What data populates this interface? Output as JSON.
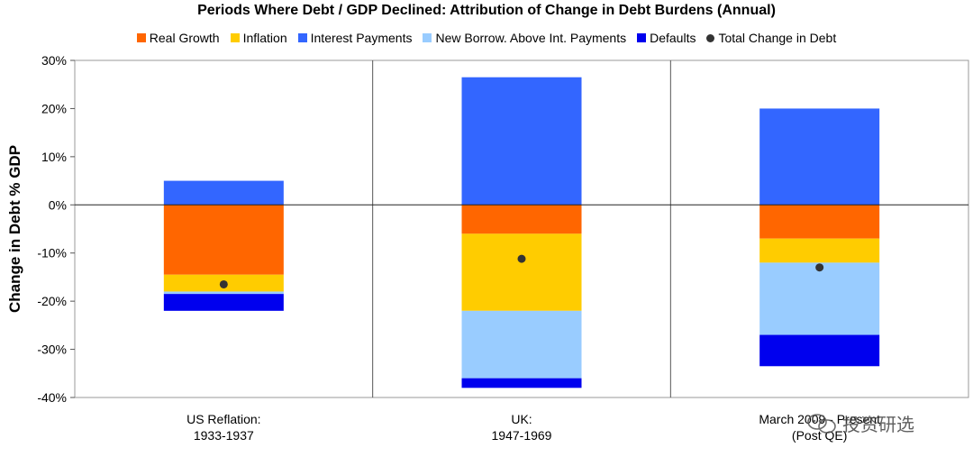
{
  "chart_data": {
    "type": "bar",
    "stacked": true,
    "title": "Periods Where Debt / GDP Declined: Attribution of Change in Debt Burdens (Annual)",
    "ylabel": "Change in Debt % GDP",
    "xlabel": "",
    "ylim": [
      -40,
      30
    ],
    "yticks": [
      30,
      20,
      10,
      0,
      -10,
      -20,
      -30,
      -40
    ],
    "ytick_labels": [
      "30%",
      "20%",
      "10%",
      "0%",
      "-10%",
      "-20%",
      "-30%",
      "-40%"
    ],
    "categories": [
      [
        "US Reflation:",
        "1933-1937"
      ],
      [
        "UK:",
        "1947-1969"
      ],
      [
        "March 2009 - Present",
        "(Post QE)"
      ]
    ],
    "series": [
      {
        "name": "Real Growth",
        "color": "#ff6600",
        "values": [
          -14.5,
          -6,
          -7
        ]
      },
      {
        "name": "Inflation",
        "color": "#ffcc00",
        "values": [
          -3.5,
          -16,
          -5
        ]
      },
      {
        "name": "Interest Payments",
        "color": "#3366ff",
        "values": [
          5,
          26.5,
          20
        ]
      },
      {
        "name": "New Borrow. Above Int. Payments",
        "color": "#99ccff",
        "values": [
          -0.5,
          -14,
          -15
        ]
      },
      {
        "name": "Defaults",
        "color": "#0000ee",
        "values": [
          -3.5,
          -2,
          -6.5
        ]
      }
    ],
    "total": {
      "name": "Total Change in Debt",
      "color": "#333333",
      "values": [
        -16.5,
        -11.2,
        -13
      ]
    },
    "legend_position": "top"
  },
  "watermark": {
    "text": "投资研选",
    "icon": "wechat-icon"
  }
}
